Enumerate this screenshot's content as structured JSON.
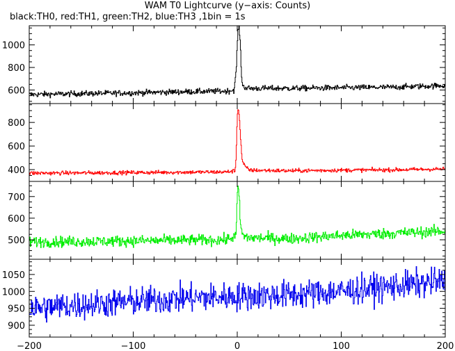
{
  "title": "WAM T0 Lightcurve (y−axis: Counts)",
  "subtitle": "black:TH0, red:TH1, green:TH2, blue:TH3 ,1bin = 1s",
  "chart_data": {
    "type": "line",
    "xlabel": "",
    "ylabel": "",
    "xlim": [
      -200,
      200
    ],
    "x_ticks": [
      -200,
      -100,
      0,
      100,
      200
    ],
    "grid": false,
    "panels": [
      {
        "name": "TH0",
        "color": "#000000",
        "ylim": [
          480,
          1170
        ],
        "y_ticks": [
          600,
          800,
          1000
        ],
        "baseline_pre": 560,
        "baseline_post": 615,
        "noise": 18,
        "x": [
          -200,
          -150,
          -100,
          -50,
          -10,
          -3,
          -1,
          0,
          1,
          2,
          3,
          4,
          5,
          8,
          12,
          50,
          100,
          150,
          200
        ],
        "values": [
          560,
          568,
          575,
          585,
          590,
          600,
          760,
          1000,
          1160,
          1140,
          1000,
          760,
          640,
          620,
          615,
          615,
          620,
          625,
          640
        ]
      },
      {
        "name": "TH1",
        "color": "#ff0000",
        "ylim": [
          300,
          960
        ],
        "y_ticks": [
          400,
          600,
          800
        ],
        "baseline_pre": 370,
        "baseline_post": 392,
        "noise": 12,
        "x": [
          -200,
          -150,
          -100,
          -50,
          -10,
          -2,
          -1,
          0,
          1,
          2,
          3,
          4,
          5,
          8,
          12,
          50,
          100,
          150,
          200
        ],
        "values": [
          370,
          372,
          375,
          378,
          380,
          390,
          520,
          850,
          940,
          850,
          700,
          560,
          470,
          420,
          395,
          390,
          395,
          398,
          405
        ]
      },
      {
        "name": "TH2",
        "color": "#00ee00",
        "ylim": [
          410,
          770
        ],
        "y_ticks": [
          500,
          600,
          700
        ],
        "baseline_pre": 490,
        "baseline_post": 520,
        "noise": 18,
        "x": [
          -200,
          -150,
          -100,
          -50,
          -10,
          -1,
          0,
          1,
          2,
          3,
          5,
          10,
          50,
          100,
          150,
          200
        ],
        "values": [
          490,
          492,
          495,
          498,
          500,
          520,
          700,
          760,
          680,
          580,
          520,
          510,
          505,
          520,
          530,
          540
        ]
      },
      {
        "name": "TH3",
        "color": "#0000ee",
        "ylim": [
          865,
          1095
        ],
        "y_ticks": [
          900,
          950,
          1000,
          1050
        ],
        "baseline_pre": 950,
        "baseline_post": 1010,
        "noise": 30,
        "x": [
          -200,
          -150,
          -100,
          -50,
          0,
          50,
          100,
          150,
          200
        ],
        "values": [
          950,
          960,
          970,
          980,
          985,
          990,
          1000,
          1015,
          1030
        ]
      }
    ]
  }
}
